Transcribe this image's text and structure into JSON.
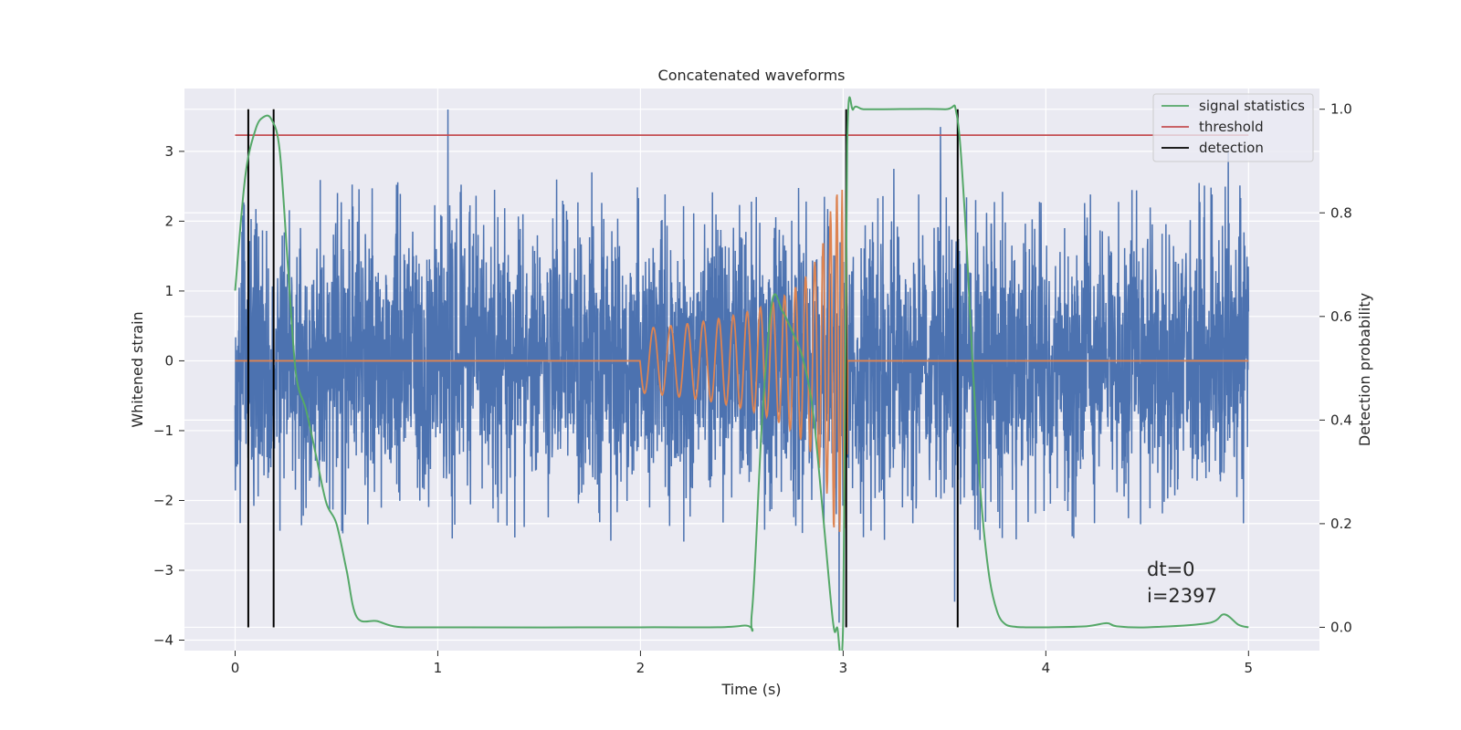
{
  "chart_data": {
    "type": "line",
    "title": "Concatenated waveforms",
    "xlabel": "Time (s)",
    "ylabel": "Whitened strain",
    "y2label": "Detection probability",
    "xlim": [
      -0.25,
      5.35
    ],
    "ylim": [
      -4.15,
      3.9
    ],
    "y2lim": [
      -0.045,
      1.04
    ],
    "xticks": [
      0,
      1,
      2,
      3,
      4,
      5
    ],
    "yticks": [
      -4,
      -3,
      -2,
      -1,
      0,
      1,
      2,
      3
    ],
    "y2ticks": [
      0.0,
      0.2,
      0.4,
      0.6,
      0.8,
      1.0
    ],
    "xtick_labels": [
      "0",
      "1",
      "2",
      "3",
      "4",
      "5"
    ],
    "ytick_labels": [
      "−4",
      "−3",
      "−2",
      "−1",
      "0",
      "1",
      "2",
      "3"
    ],
    "y2tick_labels": [
      "0.0",
      "0.2",
      "0.4",
      "0.6",
      "0.8",
      "1.0"
    ],
    "grid": true,
    "legend_position": "top-right",
    "colors": {
      "background": "#eaeaf2",
      "grid": "#ffffff",
      "noise": "#4c72b0",
      "waveform": "#dd8452",
      "signal_statistics": "#55a868",
      "threshold": "#c44e52",
      "detection": "#000000"
    },
    "series": [
      {
        "name": "",
        "role": "whitened noise strain (dense random samples, approx. ±2.5 amplitude)",
        "x_range": [
          0,
          5
        ],
        "amplitude": 1.0,
        "peaks": [
          [
            1.05,
            3.6
          ],
          [
            2.98,
            -3.75
          ],
          [
            3.48,
            3.35
          ],
          [
            3.55,
            -3.45
          ],
          [
            1.76,
            2.7
          ],
          [
            3.25,
            2.75
          ],
          [
            4.9,
            3.0
          ]
        ]
      },
      {
        "name": "",
        "role": "injected chirp waveform",
        "x": [
          0,
          2.0,
          3.0,
          5.0
        ],
        "note": "flat at 0 except chirp between t=2.0 and t=3.02 with amplitude rising to about 2.45"
      },
      {
        "name": "signal statistics",
        "axis": "right",
        "x": [
          0.0,
          0.05,
          0.1,
          0.14,
          0.18,
          0.22,
          0.26,
          0.3,
          0.35,
          0.4,
          0.45,
          0.5,
          0.55,
          0.6,
          0.7,
          0.8,
          1.0,
          2.0,
          2.5,
          2.55,
          2.6,
          2.65,
          2.7,
          2.75,
          2.8,
          2.85,
          2.9,
          2.95,
          2.97,
          3.0,
          3.02,
          3.05,
          3.1,
          3.2,
          3.5,
          3.56,
          3.6,
          3.64,
          3.68,
          3.72,
          3.76,
          3.8,
          3.85,
          3.9,
          4.0,
          4.2,
          4.3,
          4.35,
          4.5,
          4.8,
          4.88,
          4.95,
          5.0
        ],
        "y": [
          0.65,
          0.87,
          0.96,
          0.985,
          0.98,
          0.92,
          0.7,
          0.49,
          0.42,
          0.33,
          0.24,
          0.2,
          0.11,
          0.02,
          0.012,
          0.001,
          0.0,
          0.0,
          0.003,
          0.03,
          0.4,
          0.63,
          0.61,
          0.57,
          0.52,
          0.42,
          0.22,
          0.01,
          0.0,
          0.01,
          0.93,
          1.0,
          1.0,
          1.0,
          1.0,
          0.99,
          0.8,
          0.5,
          0.25,
          0.1,
          0.03,
          0.006,
          0.001,
          0.0,
          0.0,
          0.002,
          0.008,
          0.002,
          0.0,
          0.008,
          0.025,
          0.005,
          0.0
        ]
      },
      {
        "name": "threshold",
        "axis": "right",
        "x": [
          0,
          5
        ],
        "y": [
          0.95,
          0.95
        ]
      }
    ],
    "detections": {
      "name": "detection",
      "x": [
        0.065,
        0.19,
        3.015,
        3.565
      ],
      "y2_range": [
        0.0,
        1.0
      ]
    },
    "annotations": [
      "dt=0",
      "i=2397"
    ]
  }
}
